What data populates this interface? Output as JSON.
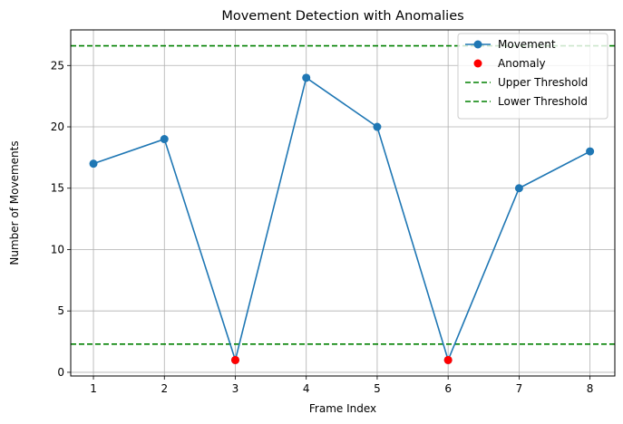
{
  "chart_data": {
    "type": "line",
    "title": "Movement Detection with Anomalies",
    "xlabel": "Frame Index",
    "ylabel": "Number of Movements",
    "xlim": [
      0.68,
      8.35
    ],
    "ylim": [
      -0.3,
      27.9
    ],
    "xticks": [
      1,
      2,
      3,
      4,
      5,
      6,
      7,
      8
    ],
    "yticks": [
      0,
      5,
      10,
      15,
      20,
      25
    ],
    "grid": true,
    "legend_position": "top-right",
    "series": [
      {
        "name": "Movement",
        "type": "line",
        "color": "#1f77b4",
        "x": [
          1,
          2,
          3,
          4,
          5,
          6,
          7,
          8
        ],
        "y": [
          17,
          19,
          1,
          24,
          20,
          1,
          15,
          18
        ]
      },
      {
        "name": "Anomaly",
        "type": "scatter",
        "color": "#ff0000",
        "x": [
          3,
          6
        ],
        "y": [
          1,
          1
        ]
      },
      {
        "name": "Upper Threshold",
        "type": "hline",
        "color": "#008000",
        "y": 26.6
      },
      {
        "name": "Lower Threshold",
        "type": "hline",
        "color": "#008000",
        "y": 2.3
      }
    ]
  }
}
